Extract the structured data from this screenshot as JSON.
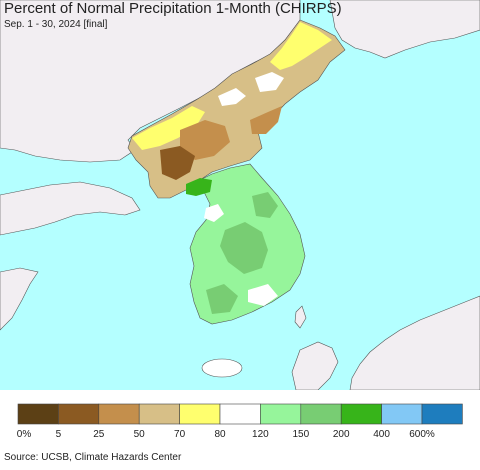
{
  "header": {
    "title": "Percent of Normal Precipitation 1-Month (CHIRPS)",
    "subtitle": "Sep. 1 - 30, 2024 [final]"
  },
  "legend": {
    "bins": [
      {
        "label": "0%",
        "color": "#5c4015"
      },
      {
        "label": "5",
        "color": "#8b5a22"
      },
      {
        "label": "25",
        "color": "#c48f4c"
      },
      {
        "label": "50",
        "color": "#d7bf87"
      },
      {
        "label": "70",
        "color": "#ffff6e"
      },
      {
        "label": "80",
        "color": "#ffffff"
      },
      {
        "label": "120",
        "color": "#96f59b"
      },
      {
        "label": "150",
        "color": "#78cd73"
      },
      {
        "label": "200",
        "color": "#37b41a"
      },
      {
        "label": "400",
        "color": "#82c8f5"
      },
      {
        "label": "600%",
        "color": "#1e7dbe"
      }
    ]
  },
  "colors": {
    "sea": "#b4ffff",
    "land": "#f2eef2"
  },
  "footer": {
    "source": "Source: UCSB, Climate Hazards Center"
  }
}
